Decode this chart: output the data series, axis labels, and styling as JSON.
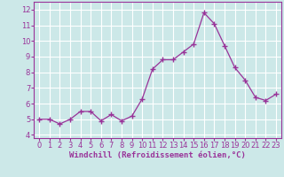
{
  "x": [
    0,
    1,
    2,
    3,
    4,
    5,
    6,
    7,
    8,
    9,
    10,
    11,
    12,
    13,
    14,
    15,
    16,
    17,
    18,
    19,
    20,
    21,
    22,
    23
  ],
  "y": [
    5.0,
    5.0,
    4.7,
    5.0,
    5.5,
    5.5,
    4.9,
    5.3,
    4.9,
    5.2,
    6.3,
    8.2,
    8.8,
    8.8,
    9.3,
    9.8,
    11.8,
    11.1,
    9.7,
    8.3,
    7.5,
    6.4,
    6.2,
    6.6
  ],
  "xlabel": "Windchill (Refroidissement éolien,°C)",
  "xlim": [
    -0.5,
    23.5
  ],
  "ylim": [
    3.8,
    12.5
  ],
  "yticks": [
    4,
    5,
    6,
    7,
    8,
    9,
    10,
    11,
    12
  ],
  "xticks": [
    0,
    1,
    2,
    3,
    4,
    5,
    6,
    7,
    8,
    9,
    10,
    11,
    12,
    13,
    14,
    15,
    16,
    17,
    18,
    19,
    20,
    21,
    22,
    23
  ],
  "line_color": "#993399",
  "marker_color": "#993399",
  "bg_color": "#cce8e8",
  "grid_color": "#ffffff",
  "label_color": "#993399",
  "tick_color": "#993399",
  "axis_label_fontsize": 6.5,
  "tick_fontsize": 6.0
}
